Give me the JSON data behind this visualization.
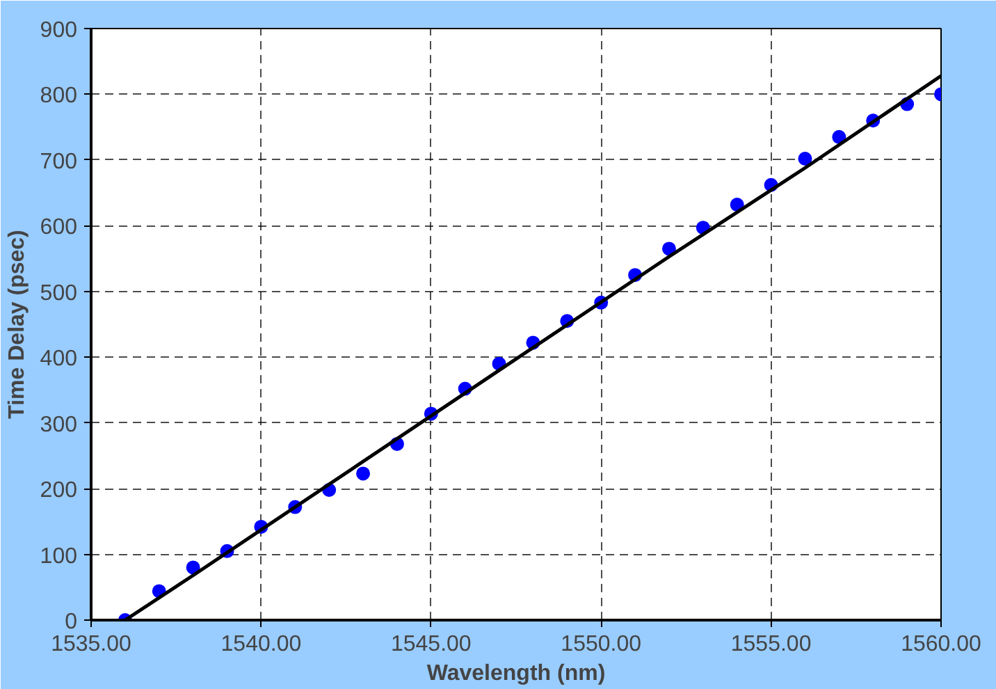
{
  "chart_data": {
    "type": "scatter",
    "xlabel": "Wavelength (nm)",
    "ylabel": "Time Delay (psec)",
    "xlim": [
      1535,
      1560
    ],
    "ylim": [
      0,
      900
    ],
    "xticks": [
      {
        "value": 1535,
        "label": "1535.00"
      },
      {
        "value": 1540,
        "label": "1540.00"
      },
      {
        "value": 1545,
        "label": "1545.00"
      },
      {
        "value": 1550,
        "label": "1550.00"
      },
      {
        "value": 1555,
        "label": "1555.00"
      },
      {
        "value": 1560,
        "label": "1560.00"
      }
    ],
    "yticks": [
      0,
      100,
      200,
      300,
      400,
      500,
      600,
      700,
      800,
      900
    ],
    "grid": true,
    "series": [
      {
        "marker": "circle",
        "color": "#0000ff",
        "x": [
          1536,
          1537,
          1538,
          1539,
          1540,
          1541,
          1542,
          1543,
          1544,
          1545,
          1546,
          1547,
          1548,
          1549,
          1550,
          1551,
          1552,
          1553,
          1554,
          1555,
          1556,
          1557,
          1558,
          1559,
          1560
        ],
        "values": [
          0,
          44,
          80,
          105,
          142,
          172,
          198,
          223,
          268,
          314,
          352,
          390,
          422,
          455,
          483,
          525,
          565,
          597,
          632,
          662,
          702,
          735,
          760,
          785,
          800
        ]
      },
      {
        "type": "line",
        "color": "#000000",
        "line_style": "solid",
        "x": [
          1536,
          1538,
          1547,
          1552,
          1556,
          1560
        ],
        "values": [
          0,
          68,
          380,
          553,
          688,
          828
        ]
      }
    ]
  }
}
